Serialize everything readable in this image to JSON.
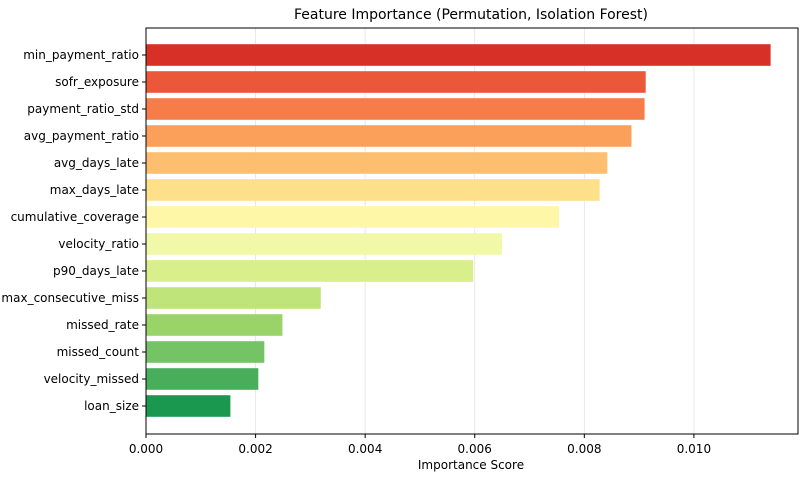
{
  "chart_data": {
    "type": "bar",
    "orientation": "horizontal",
    "title": "Feature Importance (Permutation, Isolation Forest)",
    "xlabel": "Importance Score",
    "ylabel": "",
    "xlim": [
      0,
      0.0119
    ],
    "xticks": [
      0.0,
      0.002,
      0.004,
      0.006,
      0.008,
      0.01
    ],
    "xtick_labels": [
      "0.000",
      "0.002",
      "0.004",
      "0.006",
      "0.008",
      "0.010"
    ],
    "grid": "vertical",
    "categories": [
      "min_payment_ratio",
      "sofr_exposure",
      "payment_ratio_std",
      "avg_payment_ratio",
      "avg_days_late",
      "max_days_late",
      "cumulative_coverage",
      "velocity_ratio",
      "p90_days_late",
      "max_consecutive_miss",
      "missed_rate",
      "missed_count",
      "velocity_missed",
      "loan_size"
    ],
    "values": [
      0.0114,
      0.00912,
      0.0091,
      0.00886,
      0.00842,
      0.00828,
      0.00754,
      0.0065,
      0.00597,
      0.00319,
      0.00249,
      0.00216,
      0.00205,
      0.00154
    ],
    "colors": [
      "#d73027",
      "#ea5739",
      "#f67c4a",
      "#fba05b",
      "#fdbf6f",
      "#fee08b",
      "#fff7a8",
      "#f1f9a9",
      "#d9ef8b",
      "#bfe47a",
      "#9ad469",
      "#74c365",
      "#48ae5b",
      "#1a9850"
    ]
  }
}
